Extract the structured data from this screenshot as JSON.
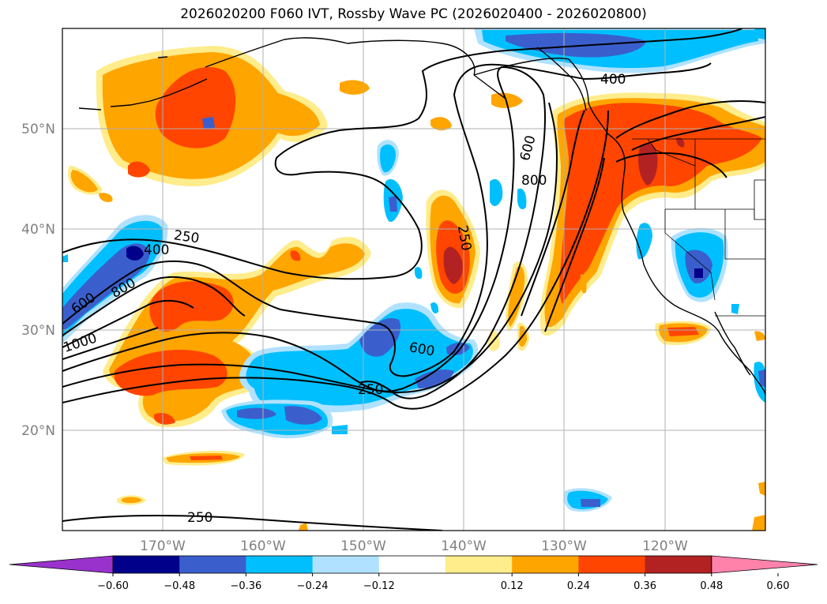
{
  "title": "2026020200 F060 IVT, Rossby Wave PC (2026020400 - 2026020800)",
  "latitudes": [
    "50°N",
    "40°N",
    "30°N",
    "20°N"
  ],
  "longitudes": [
    "170°W",
    "160°W",
    "150°W",
    "140°W",
    "130°W",
    "120°W"
  ],
  "contour_labels": [
    "400",
    "600",
    "800",
    "250",
    "400",
    "600",
    "800",
    "1000",
    "250",
    "600",
    "250",
    "250"
  ],
  "colorbar": {
    "ticks": [
      "−0.60",
      "−0.48",
      "−0.36",
      "−0.24",
      "−0.12",
      "0.12",
      "0.24",
      "0.36",
      "0.48",
      "0.60"
    ],
    "colors": [
      "#9932cc",
      "#00008b",
      "#3a5fcd",
      "#00bfff",
      "#b0e2ff",
      "#ffffff",
      "#ffec8b",
      "#ffa500",
      "#ff4500",
      "#b22222",
      "#ff82ab"
    ]
  },
  "palette": {
    "neg_light": "#b0e2ff",
    "neg_mid": "#00bfff",
    "neg_strong": "#3a5fcd",
    "neg_max": "#00008b",
    "pos_light": "#ffec8b",
    "pos_mid": "#ffa500",
    "pos_strong": "#ff4500",
    "pos_max": "#b22222"
  }
}
